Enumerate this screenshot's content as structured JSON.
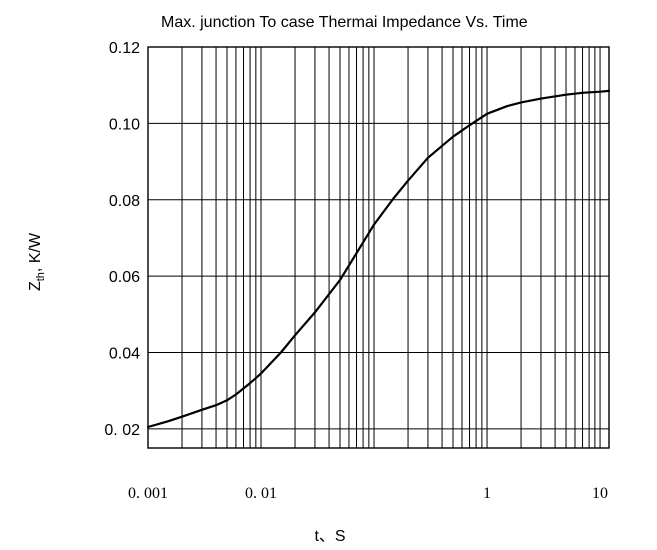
{
  "chart_data": {
    "type": "line",
    "title": "Max.  junction To case Thermai  Impedance Vs. Time",
    "xlabel": "t、S",
    "ylabel_main": "Z",
    "ylabel_sub": "th",
    "ylabel_rest": ", K/W",
    "xscale": "log",
    "xlim": [
      0.001,
      12
    ],
    "ylim": [
      0.015,
      0.12
    ],
    "grid": true,
    "x_ticks": [
      {
        "value": 0.001,
        "label": "0. 001"
      },
      {
        "value": 0.01,
        "label": "0. 01"
      },
      {
        "value": 1,
        "label": "1"
      },
      {
        "value": 10,
        "label": "10"
      }
    ],
    "y_ticks": [
      {
        "value": 0.02,
        "label": "0. 02"
      },
      {
        "value": 0.04,
        "label": "0.04"
      },
      {
        "value": 0.06,
        "label": "0.06"
      },
      {
        "value": 0.08,
        "label": "0.08"
      },
      {
        "value": 0.1,
        "label": "0.10"
      },
      {
        "value": 0.12,
        "label": "0.12"
      }
    ],
    "series": [
      {
        "color": "#000000",
        "x": [
          0.001,
          0.0015,
          0.002,
          0.003,
          0.004,
          0.005,
          0.006,
          0.008,
          0.01,
          0.015,
          0.02,
          0.03,
          0.05,
          0.07,
          0.1,
          0.15,
          0.2,
          0.3,
          0.5,
          0.7,
          1,
          1.5,
          2,
          3,
          5,
          7,
          10,
          12
        ],
        "y": [
          0.0205,
          0.022,
          0.0232,
          0.025,
          0.0262,
          0.0275,
          0.029,
          0.032,
          0.0345,
          0.04,
          0.0445,
          0.0505,
          0.059,
          0.066,
          0.0735,
          0.0805,
          0.085,
          0.091,
          0.0965,
          0.0995,
          0.1025,
          0.1045,
          0.1055,
          0.1065,
          0.1075,
          0.108,
          0.1083,
          0.1085
        ]
      }
    ]
  }
}
